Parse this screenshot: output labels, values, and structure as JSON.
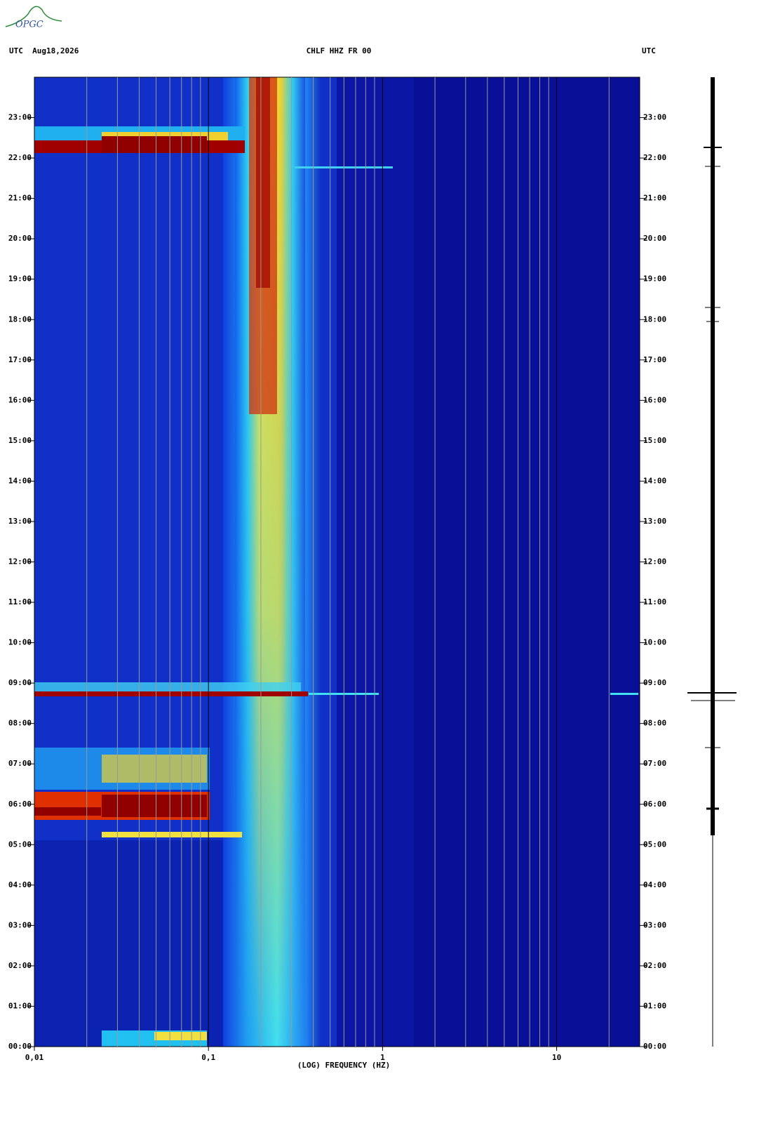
{
  "logo": "OPGC",
  "chart_data": {
    "type": "spectrogram",
    "title_left": "UTC  Aug18,2026",
    "title": "CHLF HHZ FR 00",
    "title_right": "UTC",
    "xlabel": "(LOG) FREQUENCY (HZ)",
    "xscale": "log",
    "xlim": [
      0.01,
      30
    ],
    "xticks": [
      {
        "value": 0.01,
        "label": "0,01"
      },
      {
        "value": 0.1,
        "label": "0,1"
      },
      1,
      10
    ],
    "xgrid": [
      0.02,
      0.03,
      0.04,
      0.05,
      0.06,
      0.07,
      0.08,
      0.09,
      0.2,
      0.3,
      0.4,
      0.5,
      0.6,
      0.7,
      0.8,
      0.9,
      2,
      3,
      4,
      5,
      6,
      7,
      8,
      9,
      20
    ],
    "ylim": [
      0,
      24
    ],
    "yticks": [
      {
        "value": 0,
        "label": "00:00"
      },
      {
        "value": 1,
        "label": "01:00"
      },
      {
        "value": 2,
        "label": "02:00"
      },
      {
        "value": 3,
        "label": "03:00"
      },
      {
        "value": 4,
        "label": "04:00"
      },
      {
        "value": 5,
        "label": "05:00"
      },
      {
        "value": 6,
        "label": "06:00"
      },
      {
        "value": 7,
        "label": "07:00"
      },
      {
        "value": 8,
        "label": "08:00"
      },
      {
        "value": 9,
        "label": "09:00"
      },
      {
        "value": 10,
        "label": "10:00"
      },
      {
        "value": 11,
        "label": "11:00"
      },
      {
        "value": 12,
        "label": "12:00"
      },
      {
        "value": 13,
        "label": "13:00"
      },
      {
        "value": 14,
        "label": "14:00"
      },
      {
        "value": 15,
        "label": "15:00"
      },
      {
        "value": 16,
        "label": "16:00"
      },
      {
        "value": 17,
        "label": "17:00"
      },
      {
        "value": 18,
        "label": "18:00"
      },
      {
        "value": 19,
        "label": "19:00"
      },
      {
        "value": 20,
        "label": "20:00"
      },
      {
        "value": 21,
        "label": "21:00"
      },
      {
        "value": 22,
        "label": "22:00"
      },
      {
        "value": 23,
        "label": "23:00"
      }
    ]
  }
}
